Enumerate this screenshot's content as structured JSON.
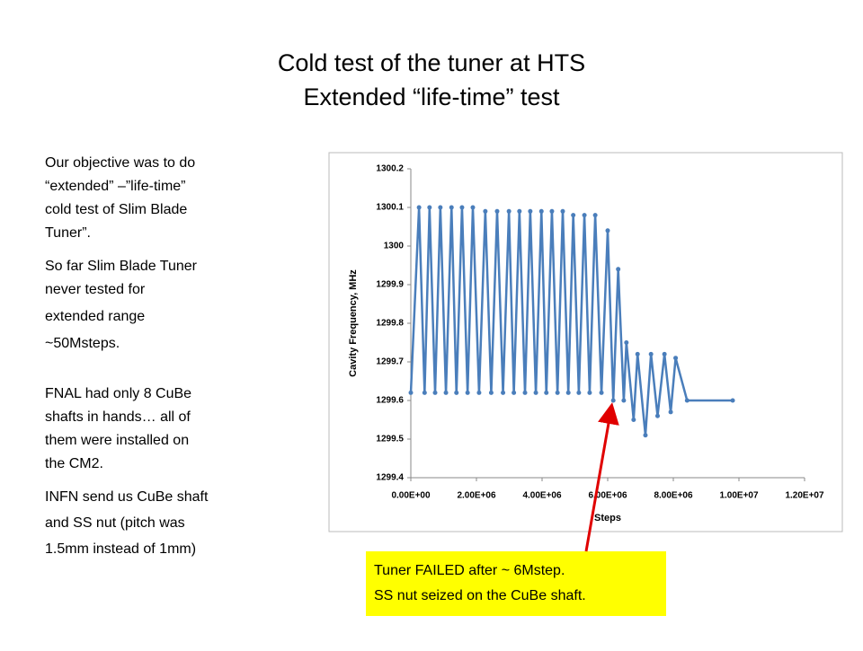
{
  "slide": {
    "title": [
      "Cold test of the tuner at HTS",
      "Extended “life-time”  test"
    ],
    "body": [
      "Our objective was to do",
      "“extended” –”life-time”",
      "cold test of Slim Blade",
      "Tuner”.",
      " So far Slim Blade Tuner",
      "never tested for",
      "extended range",
      "~50Msteps.",
      "FNAL had only 8 CuBe",
      "shafts in hands… all of",
      "them were installed on",
      "the CM2.",
      "INFN send us CuBe shaft",
      "and SS nut (pitch was",
      "1.5mm instead of 1mm)"
    ],
    "callout": [
      "Tuner  FAILED after ~ 6Mstep.",
      "SS nut seized on the CuBe shaft."
    ]
  },
  "chart_data": {
    "type": "line",
    "markers": true,
    "color": "#4a7ebb",
    "x_label": "Steps",
    "y_label": "Cavity Frequency, MHz",
    "x": [
      0,
      250000,
      420000,
      570000,
      740000,
      900000,
      1070000,
      1240000,
      1390000,
      1560000,
      1730000,
      1890000,
      2080000,
      2270000,
      2450000,
      2630000,
      2810000,
      2990000,
      3140000,
      3310000,
      3480000,
      3640000,
      3810000,
      3980000,
      4130000,
      4300000,
      4470000,
      4630000,
      4800000,
      4950000,
      5120000,
      5290000,
      5450000,
      5620000,
      5810000,
      6000000,
      6170000,
      6320000,
      6490000,
      6570000,
      6790000,
      6910000,
      7150000,
      7320000,
      7520000,
      7730000,
      7920000,
      8070000,
      8420000,
      9810000
    ],
    "values": [
      1299.62,
      1300.1,
      1299.62,
      1300.1,
      1299.62,
      1300.1,
      1299.62,
      1300.1,
      1299.62,
      1300.1,
      1299.62,
      1300.1,
      1299.62,
      1300.09,
      1299.62,
      1300.09,
      1299.62,
      1300.09,
      1299.62,
      1300.09,
      1299.62,
      1300.09,
      1299.62,
      1300.09,
      1299.62,
      1300.09,
      1299.62,
      1300.09,
      1299.62,
      1300.08,
      1299.62,
      1300.08,
      1299.62,
      1300.08,
      1299.62,
      1300.04,
      1299.6,
      1299.94,
      1299.6,
      1299.75,
      1299.55,
      1299.72,
      1299.51,
      1299.72,
      1299.56,
      1299.72,
      1299.57,
      1299.71,
      1299.6,
      1299.6
    ],
    "xlim": [
      0,
      12000000
    ],
    "xticks": [
      {
        "value": 0,
        "label": "0.00E+00"
      },
      {
        "value": 2000000,
        "label": "2.00E+06"
      },
      {
        "value": 4000000,
        "label": "4.00E+06"
      },
      {
        "value": 6000000,
        "label": "6.00E+06"
      },
      {
        "value": 8000000,
        "label": "8.00E+06"
      },
      {
        "value": 10000000,
        "label": "1.00E+07"
      },
      {
        "value": 12000000,
        "label": "1.20E+07"
      }
    ],
    "ylim": [
      1299.4,
      1300.2
    ],
    "yticks": [
      1299.4,
      1299.5,
      1299.6,
      1299.7,
      1299.8,
      1299.9,
      1300,
      1300.1,
      1300.2
    ],
    "grid": false
  }
}
